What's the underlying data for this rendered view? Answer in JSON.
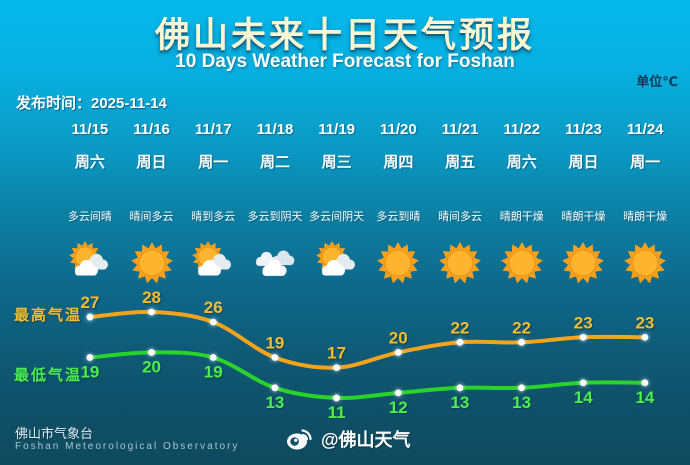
{
  "header": {
    "title": "佛山未来十日天气预报",
    "subtitle": "10 Days Weather Forecast for Foshan",
    "unit": "单位℃",
    "issue": "发布时间：2025-11-14"
  },
  "columns": [
    {
      "date": "11/15",
      "weekday": "周六",
      "condition": "多云间晴",
      "icon": "sun-cloud"
    },
    {
      "date": "11/16",
      "weekday": "周日",
      "condition": "晴间多云",
      "icon": "sun"
    },
    {
      "date": "11/17",
      "weekday": "周一",
      "condition": "晴到多云",
      "icon": "sun-cloud"
    },
    {
      "date": "11/18",
      "weekday": "周二",
      "condition": "多云到阴天",
      "icon": "cloudy"
    },
    {
      "date": "11/19",
      "weekday": "周三",
      "condition": "多云间阴天",
      "icon": "sun-cloud"
    },
    {
      "date": "11/20",
      "weekday": "周四",
      "condition": "多云到晴",
      "icon": "sun"
    },
    {
      "date": "11/21",
      "weekday": "周五",
      "condition": "晴间多云",
      "icon": "sun"
    },
    {
      "date": "11/22",
      "weekday": "周六",
      "condition": "晴朗干燥",
      "icon": "sun"
    },
    {
      "date": "11/23",
      "weekday": "周日",
      "condition": "晴朗干燥",
      "icon": "sun"
    },
    {
      "date": "11/24",
      "weekday": "周一",
      "condition": "晴朗干燥",
      "icon": "sun"
    }
  ],
  "chart_data": {
    "type": "line",
    "title": "佛山未来十日天气预报",
    "ylabel": "℃",
    "categories": [
      "11/15",
      "11/16",
      "11/17",
      "11/18",
      "11/19",
      "11/20",
      "11/21",
      "11/22",
      "11/23",
      "11/24"
    ],
    "series": [
      {
        "name": "最高气温",
        "values": [
          27,
          28,
          26,
          19,
          17,
          20,
          22,
          22,
          23,
          23
        ],
        "line_color": "#f4a41a",
        "label_color": "#f8bd2a"
      },
      {
        "name": "最低气温",
        "values": [
          19,
          20,
          19,
          13,
          11,
          12,
          13,
          13,
          14,
          14
        ],
        "line_color": "#29d32b",
        "label_color": "#4cf04c"
      }
    ],
    "ylim": [
      10,
      29
    ],
    "grid": false,
    "legend_position": "left-of-lines"
  },
  "footer": {
    "org_cn": "佛山市气象台",
    "org_en": "Foshan Meteorological Observatory",
    "weibo": "@佛山天气"
  },
  "colors": {
    "bg_top": "#05b8ec",
    "bg_bottom": "#0f4a5d",
    "title": "#fdf6d2",
    "high_line": "#f4a41a",
    "low_line": "#29d32b",
    "sun": "#f7a11c"
  }
}
